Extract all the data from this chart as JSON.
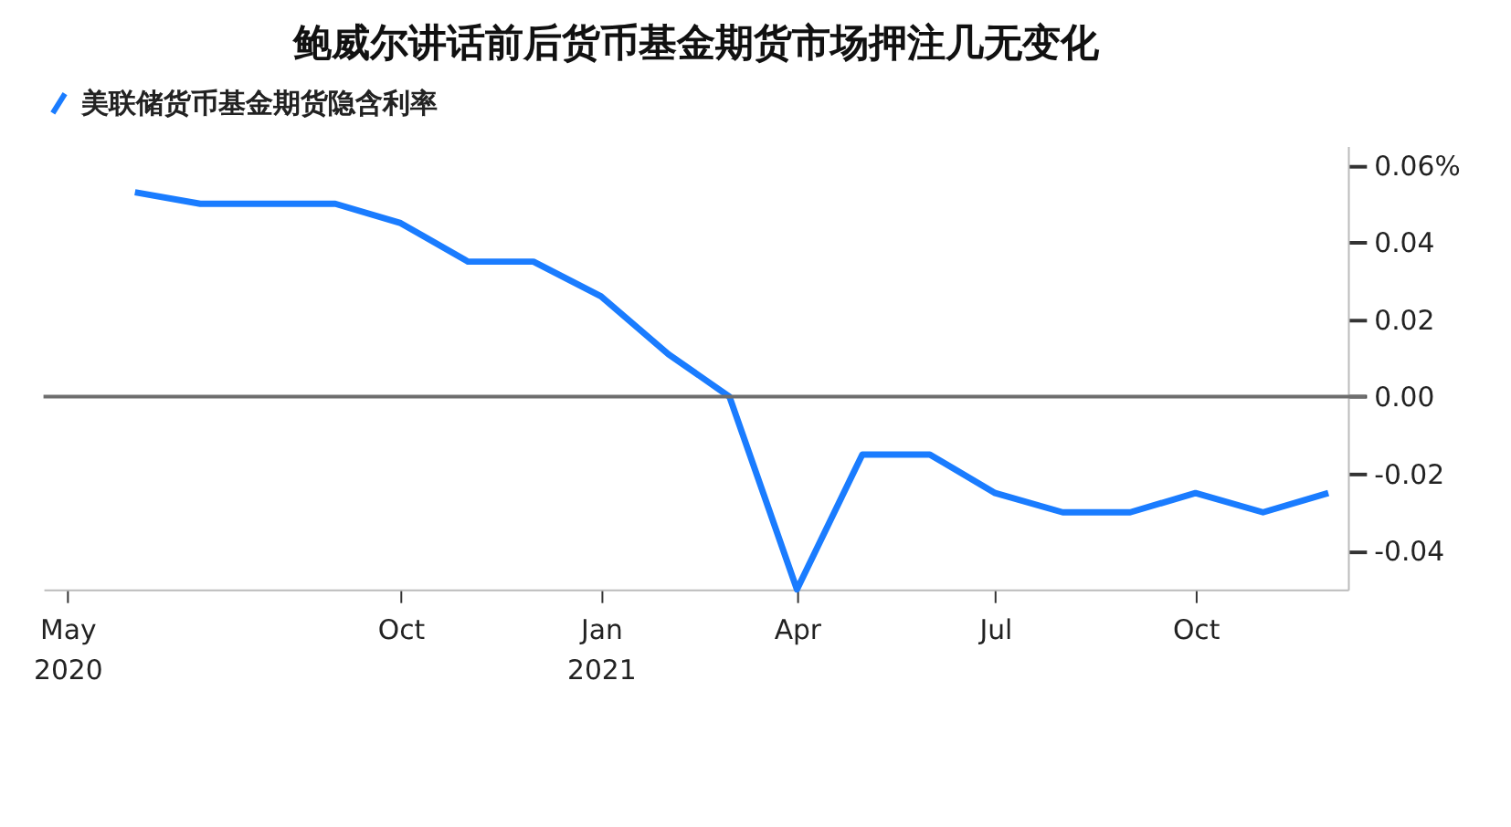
{
  "chart_data": {
    "type": "line",
    "title": "鲍威尔讲话前后货币基金期货市场押注几无变化",
    "x": [
      "2020-06",
      "2020-07",
      "2020-08",
      "2020-09",
      "2020-10",
      "2020-11",
      "2020-12",
      "2021-01",
      "2021-02",
      "2021-03",
      "2021-04",
      "2021-05",
      "2021-06",
      "2021-07",
      "2021-08",
      "2021-09",
      "2021-10",
      "2021-11",
      "2021-12"
    ],
    "series": [
      {
        "name": "美联储货币基金期货隐含利率",
        "color": "#1a7cff",
        "values": [
          0.053,
          0.05,
          0.05,
          0.05,
          0.045,
          0.035,
          0.035,
          0.026,
          0.011,
          0.0,
          -0.05,
          -0.015,
          -0.015,
          -0.025,
          -0.03,
          -0.03,
          -0.025,
          -0.03,
          -0.025
        ]
      }
    ],
    "xlim": [
      "2020-04-20",
      "2021-12-10"
    ],
    "xticks": [
      {
        "value": "2020-05-01",
        "label": "May 2020"
      },
      {
        "value": "2020-10-01",
        "label": "Oct"
      },
      {
        "value": "2021-01-01",
        "label": "Jan 2021"
      },
      {
        "value": "2021-04-01",
        "label": "Apr"
      },
      {
        "value": "2021-07-01",
        "label": "Jul"
      },
      {
        "value": "2021-10-01",
        "label": "Oct"
      }
    ],
    "ylim": [
      -0.05,
      0.065
    ],
    "yticks": [
      {
        "value": 0.06,
        "label": "0.06%"
      },
      0.04,
      0.02,
      {
        "value": 0,
        "label": "0.00"
      },
      -0.02,
      -0.04
    ],
    "ref_lines": [
      {
        "axis": "y",
        "value": 0,
        "color": "#6e6e6e"
      }
    ],
    "legend": "top left",
    "marker": "none",
    "line_style": "solid"
  }
}
